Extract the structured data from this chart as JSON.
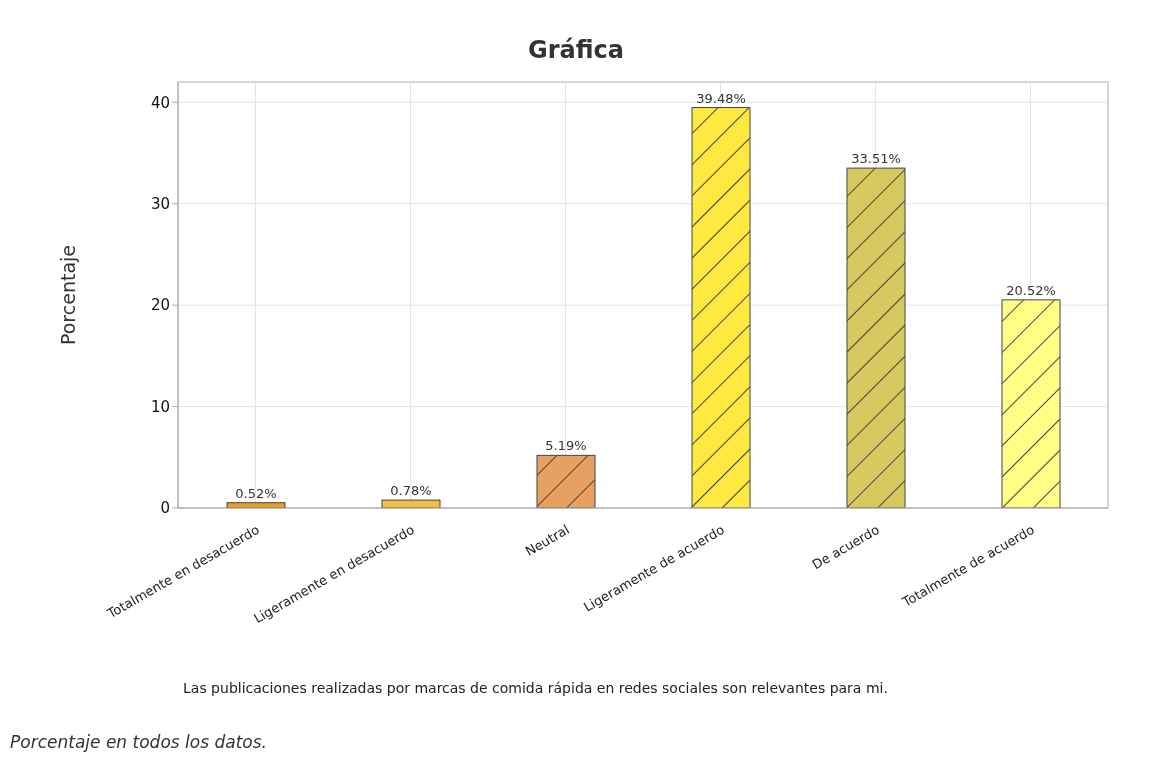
{
  "chart_data": {
    "type": "bar",
    "title": "Gráfica",
    "xlabel": "Las publicaciones realizadas por marcas de comida rápida en redes sociales son relevantes para mi.",
    "ylabel": "Porcentaje",
    "categories": [
      "Totalmente en desacuerdo",
      "Ligeramente en desacuerdo",
      "Neutral",
      "Ligeramente de acuerdo",
      "De acuerdo",
      "Totalmente de acuerdo"
    ],
    "values": [
      0.52,
      0.78,
      5.19,
      39.48,
      33.51,
      20.52
    ],
    "colors": [
      "#e8a020",
      "#f2c040",
      "#e8a060",
      "#ffe840",
      "#d8c860",
      "#ffff88"
    ],
    "value_labels": [
      "0.52%",
      "0.78%",
      "5.19%",
      "39.48%",
      "33.51%",
      "20.52%"
    ],
    "ylim": [
      0,
      42
    ],
    "yticks": [
      0,
      10,
      20,
      30,
      40
    ],
    "grid": true,
    "annotations": [
      "Porcentaje en todos los datos."
    ]
  }
}
